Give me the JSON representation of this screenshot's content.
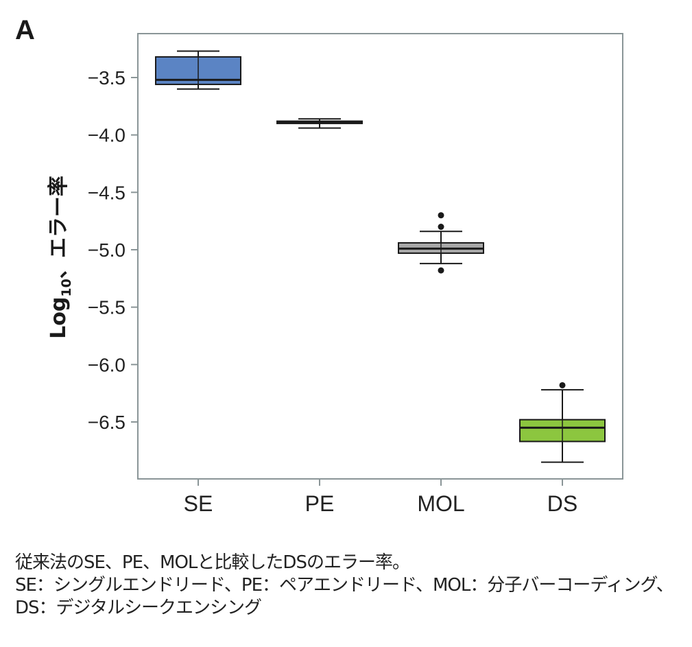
{
  "panel_label": "A",
  "chart_data": {
    "type": "boxplot",
    "title": "",
    "xlabel": "",
    "ylabel": "Log10、エラー率",
    "ylabel_parts": {
      "main": "Log",
      "sub": "10",
      "rest": "、エラー率"
    },
    "ylim": [
      -6.85,
      -3.2
    ],
    "yticks": [
      -3.5,
      -4.0,
      -4.5,
      -5.0,
      -5.5,
      -6.0,
      -6.5
    ],
    "ytick_labels": [
      "−3.5",
      "−4.0",
      "−4.5",
      "−5.0",
      "−5.5",
      "−6.0",
      "−6.5"
    ],
    "categories": [
      "SE",
      "PE",
      "MOL",
      "DS"
    ],
    "boxes": [
      {
        "name": "SE",
        "color": "#5b84c4",
        "whisker_low": -3.6,
        "q1": -3.56,
        "median": -3.52,
        "q3": -3.32,
        "whisker_high": -3.27,
        "outliers": []
      },
      {
        "name": "PE",
        "color": "#7a7a7a",
        "whisker_low": -3.94,
        "q1": -3.9,
        "median": -3.89,
        "q3": -3.88,
        "whisker_high": -3.86,
        "outliers": []
      },
      {
        "name": "MOL",
        "color": "#a8a8a8",
        "whisker_low": -5.12,
        "q1": -5.03,
        "median": -4.99,
        "q3": -4.94,
        "whisker_high": -4.84,
        "outliers": [
          -4.7,
          -4.8,
          -5.18
        ]
      },
      {
        "name": "DS",
        "color": "#8cc63f",
        "whisker_low": -6.85,
        "q1": -6.67,
        "median": -6.55,
        "q3": -6.48,
        "whisker_high": -6.22,
        "outliers": [
          -6.18
        ]
      }
    ],
    "grid": false,
    "legend": "none"
  },
  "caption": {
    "line1": "従来法のSE、PE、MOLと比較したDSのエラー率。",
    "line2": "SE：シングルエンドリード、PE：ペアエンドリード、MOL：分子バーコーディング、",
    "line3": "DS：デジタルシークエンシング"
  }
}
